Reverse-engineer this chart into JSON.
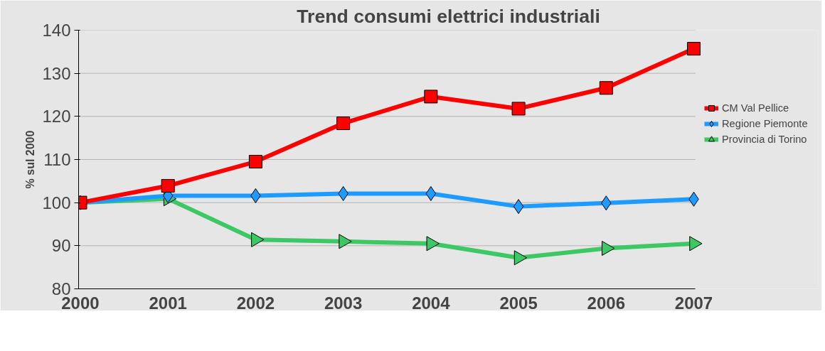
{
  "chart_data": {
    "type": "line",
    "title": "Trend consumi elettrici industriali",
    "ylabel": "% sul 2000",
    "categories": [
      "2000",
      "2001",
      "2002",
      "2003",
      "2004",
      "2005",
      "2006",
      "2007"
    ],
    "series": [
      {
        "name": "CM Val Pellice",
        "color": "#ff0000",
        "marker": "square",
        "values": [
          100,
          103.9,
          109.5,
          118.4,
          124.6,
          121.8,
          126.6,
          135.7
        ]
      },
      {
        "name": "Regione Piemonte",
        "color": "#1e9bff",
        "marker": "diamond",
        "values": [
          100,
          101.6,
          101.6,
          102.1,
          102.1,
          99.1,
          99.9,
          100.8
        ]
      },
      {
        "name": "Provincia di Torino",
        "color": "#3cc864",
        "marker": "triangle",
        "values": [
          100,
          100.9,
          91.4,
          91.0,
          90.5,
          87.2,
          89.4,
          90.5
        ]
      }
    ],
    "ylim": [
      80,
      140
    ],
    "yticks": [
      80,
      90,
      100,
      110,
      120,
      130,
      140
    ],
    "grid": "y",
    "legend": "right"
  }
}
